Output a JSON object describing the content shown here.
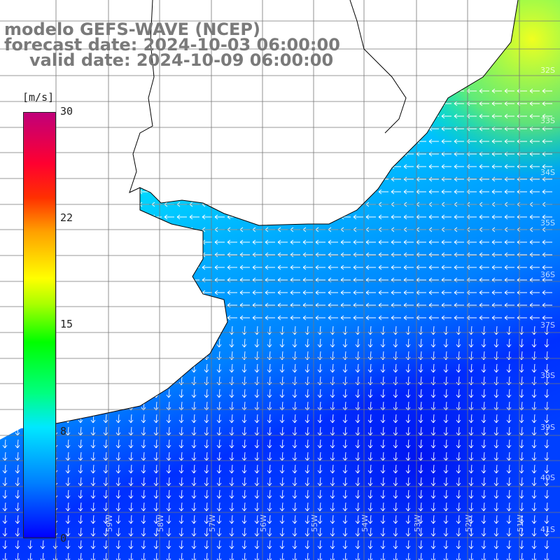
{
  "title": {
    "line1": "modelo GEFS-WAVE (NCEP)",
    "line2": "forecast date: 2024-10-03 06:00:00",
    "line3": "valid date: 2024-10-09 06:00:00"
  },
  "colorbar": {
    "unit": "[m/s]",
    "ticks": [
      "30",
      "22",
      "15",
      "8",
      "0"
    ],
    "colors": [
      "#0000ff",
      "#0080ff",
      "#00e8ff",
      "#00ff80",
      "#00ff00",
      "#ffff00",
      "#ff8000",
      "#ff0000",
      "#c0007a"
    ]
  },
  "grid": {
    "lat_labels": [
      "32S",
      "33S",
      "34S",
      "35S",
      "36S",
      "37S",
      "38S",
      "39S",
      "40S",
      "41S"
    ],
    "lon_labels": [
      "59W",
      "58W",
      "57W",
      "56W",
      "55W",
      "54W",
      "53W",
      "52W",
      "51W"
    ]
  },
  "map": {
    "field": "wind speed with direction arrows",
    "region": "Rio de la Plata / Uruguay / Buenos Aires coast, South Atlantic"
  }
}
